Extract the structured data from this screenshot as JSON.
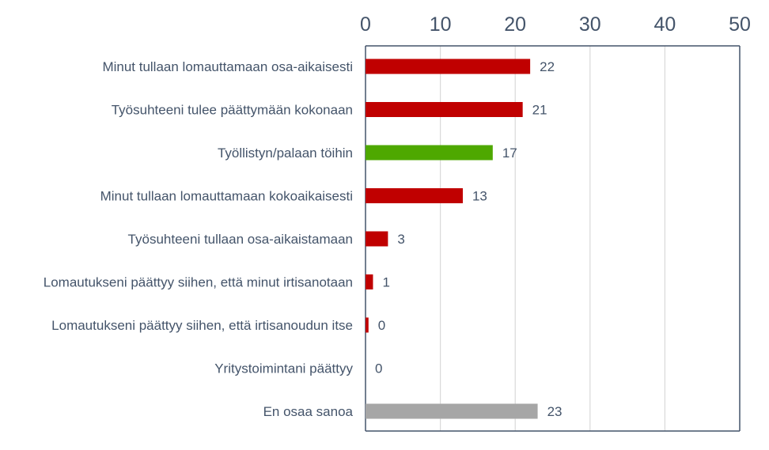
{
  "chart_data": {
    "type": "bar",
    "orientation": "horizontal",
    "title": "",
    "xlabel": "",
    "ylabel": "",
    "xlim": [
      0,
      50
    ],
    "x_ticks": [
      0,
      10,
      20,
      30,
      40,
      50
    ],
    "x_tick_labels": [
      "0",
      "10",
      "20",
      "30",
      "40",
      "50"
    ],
    "x_axis_position": "top",
    "grid": true,
    "legend": "none",
    "categories": [
      "Minut tullaan lomauttamaan osa-aikaisesti",
      "Työsuhteeni tulee päättymään kokonaan",
      "Työllistyn/palaan töihin",
      "Minut tullaan lomauttamaan kokoaikaisesti",
      "Työsuhteeni tullaan osa-aikaistamaan",
      "Lomautukseni päättyy siihen, että minut irtisanotaan",
      "Lomautukseni päättyy siihen, että irtisanoudun itse",
      "Yritystoimintani päättyy",
      "En osaa sanoa"
    ],
    "values": [
      22,
      21,
      17,
      13,
      3,
      1,
      0.4,
      0,
      23
    ],
    "value_labels": [
      "22",
      "21",
      "17",
      "13",
      "3",
      "1",
      "0",
      "0",
      "23"
    ],
    "bar_colors": [
      "#c00000",
      "#c00000",
      "#4ea800",
      "#c00000",
      "#c00000",
      "#c00000",
      "#c00000",
      "#c00000",
      "#a6a6a6"
    ]
  },
  "colors": {
    "text": "#44546a",
    "gridline": "#d9d9d9",
    "frame": "#44546a"
  }
}
